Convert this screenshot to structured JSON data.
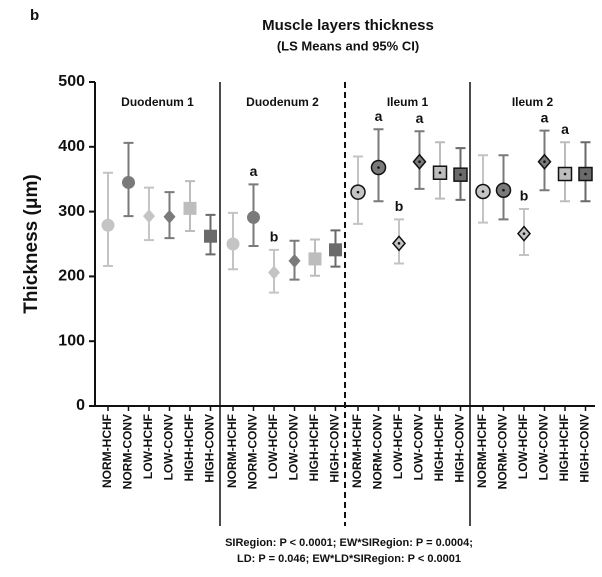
{
  "chart_data": {
    "type": "errorbar",
    "panel_label": "b",
    "title": "Muscle layers thickness",
    "subtitle": "(LS Means and 95% CI)",
    "ylabel": "Thickness (μm)",
    "ylim": [
      0,
      500
    ],
    "yticks": [
      0,
      100,
      200,
      300,
      400,
      500
    ],
    "markers": [
      {
        "shape": "circle",
        "color": "#c4c4c4"
      },
      {
        "shape": "circle",
        "color": "#7a7a7a"
      },
      {
        "shape": "diamond",
        "color": "#c4c4c4"
      },
      {
        "shape": "diamond",
        "color": "#7a7a7a"
      },
      {
        "shape": "square",
        "color": "#bdbdbd"
      },
      {
        "shape": "square",
        "color": "#6a6a6a"
      }
    ],
    "divider_styles": [
      "solid",
      "dashed",
      "solid"
    ],
    "panels": [
      {
        "name": "Duodenum 1",
        "outlined": false,
        "categories": [
          "NORM-HCHF",
          "NORM-CONV",
          "LOW-HCHF",
          "LOW-CONV",
          "HIGH-HCHF",
          "HIGH-CONV"
        ],
        "values": [
          279,
          345,
          293,
          292,
          305,
          262
        ],
        "ci_low": [
          216,
          293,
          256,
          259,
          270,
          234
        ],
        "ci_high": [
          360,
          406,
          337,
          330,
          347,
          295
        ],
        "letters": [
          null,
          null,
          null,
          null,
          null,
          null
        ]
      },
      {
        "name": "Duodenum 2",
        "outlined": false,
        "categories": [
          "NORM-HCHF",
          "NORM-CONV",
          "LOW-HCHF",
          "LOW-CONV",
          "HIGH-HCHF",
          "HIGH-CONV"
        ],
        "values": [
          250,
          291,
          206,
          224,
          227,
          241
        ],
        "ci_low": [
          211,
          247,
          175,
          195,
          201,
          215
        ],
        "ci_high": [
          298,
          342,
          241,
          255,
          257,
          271
        ],
        "letters": [
          null,
          "a",
          "b",
          null,
          null,
          null
        ]
      },
      {
        "name": "Ileum 1",
        "outlined": true,
        "categories": [
          "NORM-HCHF",
          "NORM-CONV",
          "LOW-HCHF",
          "LOW-CONV",
          "HIGH-HCHF",
          "HIGH-CONV"
        ],
        "values": [
          330,
          368,
          251,
          377,
          360,
          357
        ],
        "ci_low": [
          281,
          316,
          220,
          335,
          320,
          318
        ],
        "ci_high": [
          385,
          427,
          288,
          424,
          407,
          398
        ],
        "letters": [
          null,
          "a",
          "b",
          "a",
          null,
          null
        ]
      },
      {
        "name": "Ileum 2",
        "outlined": true,
        "categories": [
          "NORM-HCHF",
          "NORM-CONV",
          "LOW-HCHF",
          "LOW-CONV",
          "HIGH-HCHF",
          "HIGH-CONV"
        ],
        "values": [
          331,
          333,
          266,
          377,
          358,
          358
        ],
        "ci_low": [
          283,
          288,
          233,
          333,
          316,
          316
        ],
        "ci_high": [
          387,
          387,
          304,
          425,
          407,
          407
        ],
        "letters": [
          null,
          null,
          "b",
          "a",
          "a",
          null
        ]
      }
    ],
    "notes": [
      "SIRegion: P < 0.0001; EW*SIRegion: P = 0.0004;",
      "LD: P = 0.046; EW*LD*SIRegion: P < 0.0001"
    ]
  }
}
